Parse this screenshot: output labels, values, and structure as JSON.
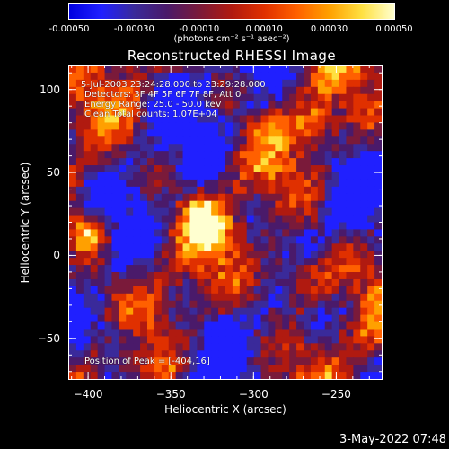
{
  "colorbar": {
    "tick_labels": [
      "-0.00050",
      "-0.00030",
      "-0.00010",
      "0.00010",
      "0.00030",
      "0.00050"
    ],
    "tick_values": [
      -0.0005,
      -0.0003,
      -0.0001,
      0.0001,
      0.0003,
      0.0005
    ],
    "range": [
      -0.0005,
      0.0005
    ],
    "units": "(photons cm⁻² s⁻¹ asec⁻²)",
    "colors": [
      "#0000e0",
      "#2020ff",
      "#3a2a9a",
      "#4a1a6a",
      "#7a1a3a",
      "#b01a10",
      "#e03000",
      "#ff6000",
      "#ffa000",
      "#ffe040",
      "#ffffd0"
    ]
  },
  "chart_data": {
    "type": "heatmap",
    "title": "Reconstructed RHESSI Image",
    "xlabel": "Heliocentric X (arcsec)",
    "ylabel": "Heliocentric Y (arcsec)",
    "xlim": [
      -412,
      -222
    ],
    "ylim": [
      -75,
      115
    ],
    "x_ticks": [
      -400,
      -350,
      -300,
      -250
    ],
    "y_ticks": [
      -50,
      0,
      50,
      100
    ],
    "x_tick_labels": [
      "−400",
      "−350",
      "−300",
      "−250"
    ],
    "y_tick_labels": [
      "−50",
      "0",
      "50",
      "100"
    ],
    "annotations": [
      "5-Jul-2003 23:24:28.000 to 23:29:28.000",
      "Detectors: 3F 4F 5F 6F 7F 8F, Att 0",
      "Energy Range: 25.0 - 50.0 keV",
      "Clean    Total counts: 1.07E+04"
    ],
    "peak_label": "Position of Peak = [-404,16]",
    "peak_position": [
      -404,
      16
    ]
  },
  "footer": {
    "timestamp": "3-May-2022 07:48"
  }
}
